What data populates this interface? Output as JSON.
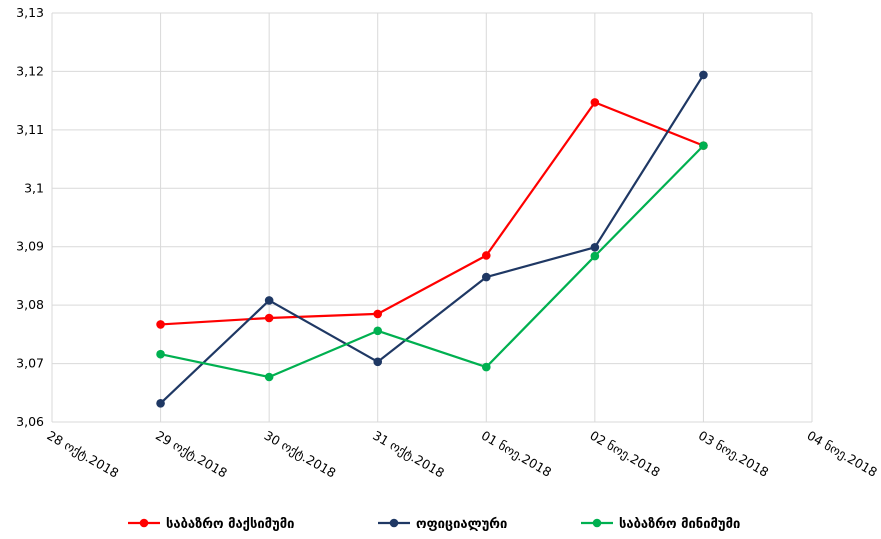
{
  "chart_data": {
    "type": "line",
    "title": "",
    "xlabel": "",
    "ylabel": "",
    "categories": [
      "28 ოქტ.2018",
      "29 ოქტ.2018",
      "30 ოქტ.2018",
      "31 ოქტ.2018",
      "01 ნოე.2018",
      "02 ნოე.2018",
      "03 ნოე.2018",
      "04 ნოე.2018"
    ],
    "yticks": [
      "3,13",
      "3,12",
      "3,11",
      "3,1",
      "3,09",
      "3,08",
      "3,07",
      "3,06"
    ],
    "ylim": [
      3.06,
      3.13
    ],
    "grid": true,
    "legend_position": "bottom",
    "series": [
      {
        "name": "საბაზრო მაქსიმუმი",
        "color": "#ff0000",
        "values": [
          null,
          3.0767,
          3.0778,
          3.0785,
          3.0885,
          3.1147,
          3.1073,
          null
        ]
      },
      {
        "name": "ოფიციალური",
        "color": "#1f3864",
        "values": [
          null,
          3.0632,
          3.0808,
          3.0703,
          3.0848,
          3.0899,
          3.1194,
          null
        ]
      },
      {
        "name": "საბაზრო მინიმუმი",
        "color": "#00b050",
        "values": [
          null,
          3.0716,
          3.0677,
          3.0756,
          3.0694,
          3.0884,
          3.1073,
          null
        ]
      }
    ]
  }
}
